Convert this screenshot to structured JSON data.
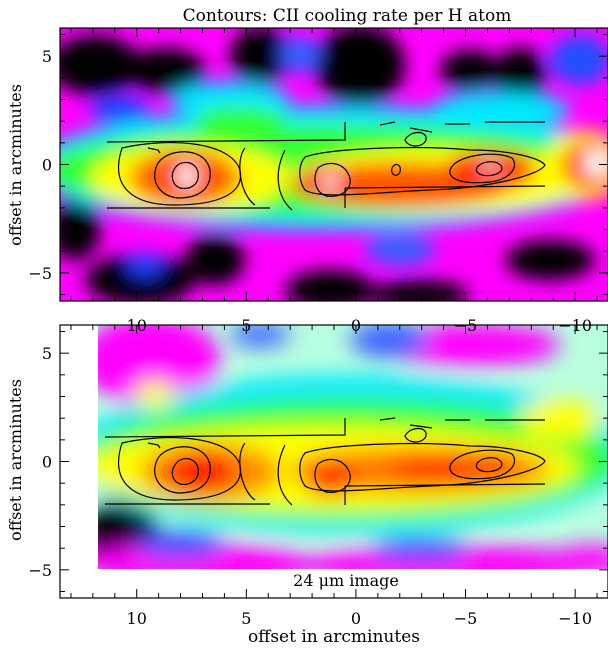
{
  "chart_data": [
    {
      "type": "heatmap",
      "title": "Contours: CII cooling rate per H atom",
      "xlabel": "",
      "ylabel": "offset in arcminutes",
      "xlim": [
        13.5,
        -11.5
      ],
      "ylim": [
        -6.3,
        6.3
      ],
      "xticks": [
        10,
        5,
        0,
        -5,
        -10
      ],
      "yticks": [
        -5,
        0,
        5
      ],
      "grid": false,
      "colormap": [
        "#000000",
        "#ff00ff",
        "#0000ff",
        "#00ffff",
        "#00ff00",
        "#ffff00",
        "#ff0000",
        "#ffffff"
      ],
      "contour_levels": 3,
      "annotation": ""
    },
    {
      "type": "heatmap",
      "title": "",
      "xlabel": "offset in arcminutes",
      "ylabel": "offset in arcminutes",
      "xlim": [
        13.5,
        -11.5
      ],
      "ylim": [
        -6.3,
        6.3
      ],
      "xticks": [
        10,
        5,
        0,
        -5,
        -10
      ],
      "yticks": [
        -5,
        0,
        5
      ],
      "grid": false,
      "colormap": [
        "#000000",
        "#ff00ff",
        "#0000ff",
        "#00ffff",
        "#00ff00",
        "#ffff00",
        "#ff0000",
        "#ffffff"
      ],
      "contour_levels": 3,
      "annotation": "24 μm image",
      "image_extent_x": [
        11.3,
        -11.5
      ],
      "image_extent_y": [
        -4.9,
        6.3
      ]
    }
  ]
}
